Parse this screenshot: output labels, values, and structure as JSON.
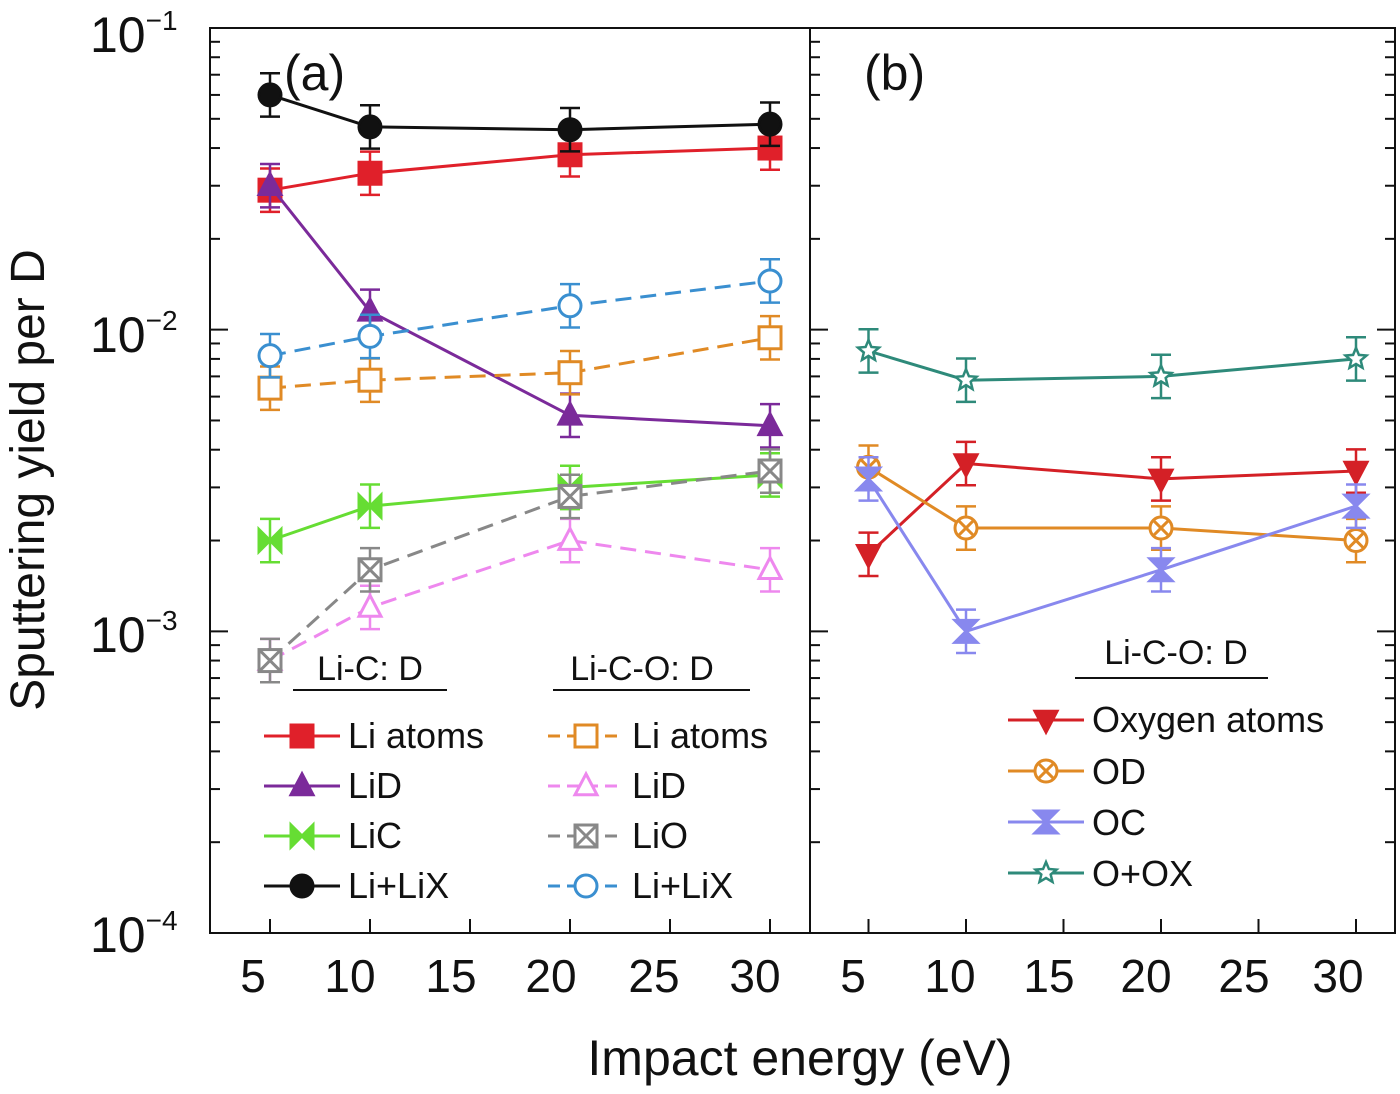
{
  "chart_data": [
    {
      "panel_label": "(a)",
      "type": "line",
      "y_scale": "log",
      "ylim": [
        0.0001,
        0.1
      ],
      "xlim": [
        2,
        32
      ],
      "x_ticks": [
        5,
        10,
        15,
        20,
        25,
        30
      ],
      "legend_groups": [
        "Li-C: D",
        "Li-C-O: D"
      ],
      "series": [
        {
          "name": "Li atoms",
          "group": "Li-C: D",
          "color": "#e0202a",
          "marker": "square",
          "filled": true,
          "dashed": false,
          "x": [
            5,
            10,
            20,
            30
          ],
          "y": [
            0.029,
            0.033,
            0.038,
            0.04
          ]
        },
        {
          "name": "LiD",
          "group": "Li-C: D",
          "color": "#7b2a9a",
          "marker": "triangle-up",
          "filled": true,
          "dashed": false,
          "x": [
            5,
            10,
            20,
            30
          ],
          "y": [
            0.03,
            0.0115,
            0.0052,
            0.0048
          ]
        },
        {
          "name": "LiC",
          "group": "Li-C: D",
          "color": "#66dd33",
          "marker": "bowtie",
          "filled": true,
          "dashed": false,
          "x": [
            5,
            10,
            20,
            30
          ],
          "y": [
            0.002,
            0.0026,
            0.003,
            0.0033
          ]
        },
        {
          "name": "Li+LiX",
          "group": "Li-C: D",
          "color": "#111111",
          "marker": "circle",
          "filled": true,
          "dashed": false,
          "x": [
            5,
            10,
            20,
            30
          ],
          "y": [
            0.06,
            0.047,
            0.046,
            0.048
          ]
        },
        {
          "name": "Li atoms",
          "group": "Li-C-O: D",
          "color": "#e08a25",
          "marker": "square",
          "filled": false,
          "dashed": true,
          "x": [
            5,
            10,
            20,
            30
          ],
          "y": [
            0.0064,
            0.0068,
            0.0072,
            0.0094
          ]
        },
        {
          "name": "LiD",
          "group": "Li-C-O: D",
          "color": "#ee88ee",
          "marker": "triangle-up",
          "filled": false,
          "dashed": true,
          "x": [
            5,
            10,
            20,
            30
          ],
          "y": [
            0.0008,
            0.0012,
            0.002,
            0.0016
          ]
        },
        {
          "name": "LiO",
          "group": "Li-C-O: D",
          "color": "#888888",
          "marker": "bowtie-x",
          "filled": false,
          "dashed": true,
          "x": [
            5,
            10,
            20,
            30
          ],
          "y": [
            0.0008,
            0.0016,
            0.0028,
            0.0034
          ]
        },
        {
          "name": "Li+LiX",
          "group": "Li-C-O: D",
          "color": "#3a8fd0",
          "marker": "circle",
          "filled": false,
          "dashed": true,
          "x": [
            5,
            10,
            20,
            30
          ],
          "y": [
            0.0082,
            0.0095,
            0.012,
            0.0145
          ]
        }
      ]
    },
    {
      "panel_label": "(b)",
      "type": "line",
      "y_scale": "log",
      "ylim": [
        0.0001,
        0.1
      ],
      "xlim": [
        2,
        32
      ],
      "x_ticks": [
        5,
        10,
        15,
        20,
        25,
        30
      ],
      "legend_groups": [
        "Li-C-O: D"
      ],
      "series": [
        {
          "name": "Oxygen atoms",
          "group": "Li-C-O: D",
          "color": "#d42026",
          "marker": "triangle-down",
          "filled": true,
          "dashed": false,
          "x": [
            5,
            10,
            20,
            30
          ],
          "y": [
            0.0018,
            0.0036,
            0.0032,
            0.0034
          ]
        },
        {
          "name": "OD",
          "group": "Li-C-O: D",
          "color": "#e08a25",
          "marker": "circle-x",
          "filled": false,
          "dashed": false,
          "x": [
            5,
            10,
            20,
            30
          ],
          "y": [
            0.0035,
            0.0022,
            0.0022,
            0.002
          ]
        },
        {
          "name": "OC",
          "group": "Li-C-O: D",
          "color": "#8888ee",
          "marker": "hourglass",
          "filled": true,
          "dashed": false,
          "x": [
            5,
            10,
            20,
            30
          ],
          "y": [
            0.0032,
            0.001,
            0.0016,
            0.0026
          ]
        },
        {
          "name": "O+OX",
          "group": "Li-C-O: D",
          "color": "#2e8a7a",
          "marker": "star",
          "filled": false,
          "dashed": false,
          "x": [
            5,
            10,
            20,
            30
          ],
          "y": [
            0.0085,
            0.0068,
            0.007,
            0.008
          ]
        }
      ]
    }
  ],
  "axes": {
    "ylabel": "Sputtering yield per D",
    "xlabel": "Impact energy (eV)",
    "y_tick_labels": [
      {
        "base": "10",
        "exp": "−1",
        "value": 0.1
      },
      {
        "base": "10",
        "exp": "−2",
        "value": 0.01
      },
      {
        "base": "10",
        "exp": "−3",
        "value": 0.001
      },
      {
        "base": "10",
        "exp": "−4",
        "value": 0.0001
      }
    ],
    "x_tick_labels": [
      "5",
      "10",
      "15",
      "20",
      "25",
      "30"
    ]
  }
}
